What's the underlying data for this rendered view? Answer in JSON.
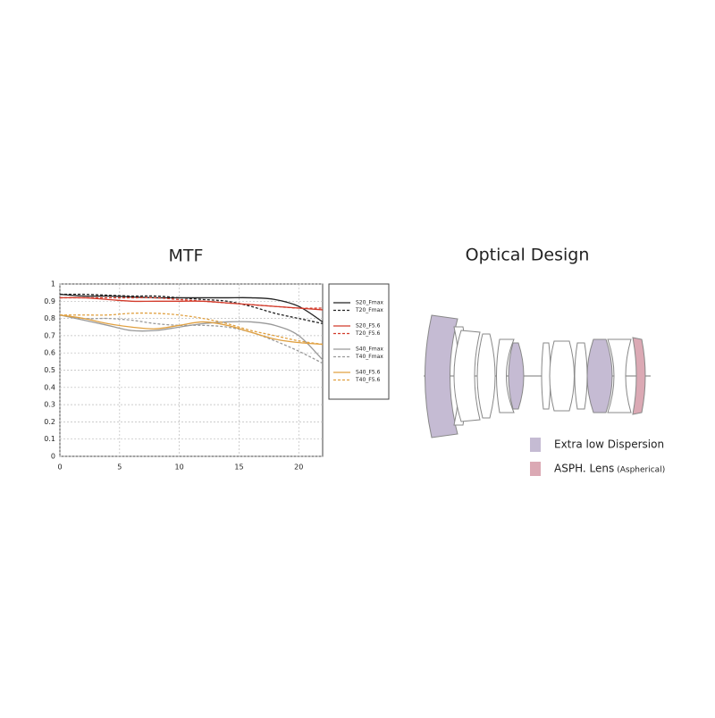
{
  "chart_data": {
    "type": "line",
    "title": "MTF",
    "x": [
      0,
      2,
      4,
      6,
      8,
      10,
      12,
      14,
      16,
      18,
      20,
      22
    ],
    "xlim": [
      0,
      22
    ],
    "xticks": [
      0,
      5,
      10,
      15,
      20
    ],
    "ylim": [
      0,
      1
    ],
    "yticks": [
      0,
      0.1,
      0.2,
      0.3,
      0.4,
      0.5,
      0.6,
      0.7,
      0.8,
      0.9,
      1
    ],
    "grid": true,
    "legend": "right",
    "series": [
      {
        "name": "S20_Fmax",
        "color": "#222222",
        "dashed": false,
        "values": [
          0.94,
          0.93,
          0.93,
          0.925,
          0.92,
          0.92,
          0.92,
          0.92,
          0.92,
          0.91,
          0.87,
          0.78
        ]
      },
      {
        "name": "T20_Fmax",
        "color": "#222222",
        "dashed": true,
        "values": [
          0.94,
          0.94,
          0.935,
          0.93,
          0.93,
          0.92,
          0.91,
          0.9,
          0.87,
          0.83,
          0.8,
          0.77
        ]
      },
      {
        "name": "S20_F5.6",
        "color": "#d23a2a",
        "dashed": false,
        "values": [
          0.92,
          0.92,
          0.91,
          0.9,
          0.9,
          0.9,
          0.9,
          0.89,
          0.88,
          0.87,
          0.86,
          0.85
        ]
      },
      {
        "name": "T20_F5.6",
        "color": "#d23a2a",
        "dashed": true,
        "values": [
          0.92,
          0.92,
          0.92,
          0.92,
          0.92,
          0.91,
          0.9,
          0.89,
          0.88,
          0.87,
          0.86,
          0.86
        ]
      },
      {
        "name": "S40_Fmax",
        "color": "#999999",
        "dashed": false,
        "values": [
          0.82,
          0.79,
          0.76,
          0.73,
          0.73,
          0.75,
          0.77,
          0.78,
          0.78,
          0.76,
          0.7,
          0.56
        ]
      },
      {
        "name": "T40_Fmax",
        "color": "#999999",
        "dashed": true,
        "values": [
          0.82,
          0.8,
          0.8,
          0.79,
          0.77,
          0.76,
          0.76,
          0.75,
          0.72,
          0.67,
          0.61,
          0.54
        ]
      },
      {
        "name": "S40_F5.6",
        "color": "#e0a040",
        "dashed": false,
        "values": [
          0.82,
          0.8,
          0.77,
          0.75,
          0.74,
          0.76,
          0.78,
          0.76,
          0.72,
          0.68,
          0.66,
          0.65
        ]
      },
      {
        "name": "T40_F5.6",
        "color": "#e0a040",
        "dashed": true,
        "values": [
          0.82,
          0.82,
          0.82,
          0.83,
          0.83,
          0.82,
          0.8,
          0.77,
          0.73,
          0.7,
          0.67,
          0.65
        ]
      }
    ]
  },
  "optical_design": {
    "title": "Optical Design",
    "legend": [
      {
        "label": "Extra low Dispersion",
        "color": "#c5bbd3"
      },
      {
        "label": "ASPH. Lens",
        "note": "(Aspherical)",
        "color": "#dba9b4"
      }
    ]
  }
}
